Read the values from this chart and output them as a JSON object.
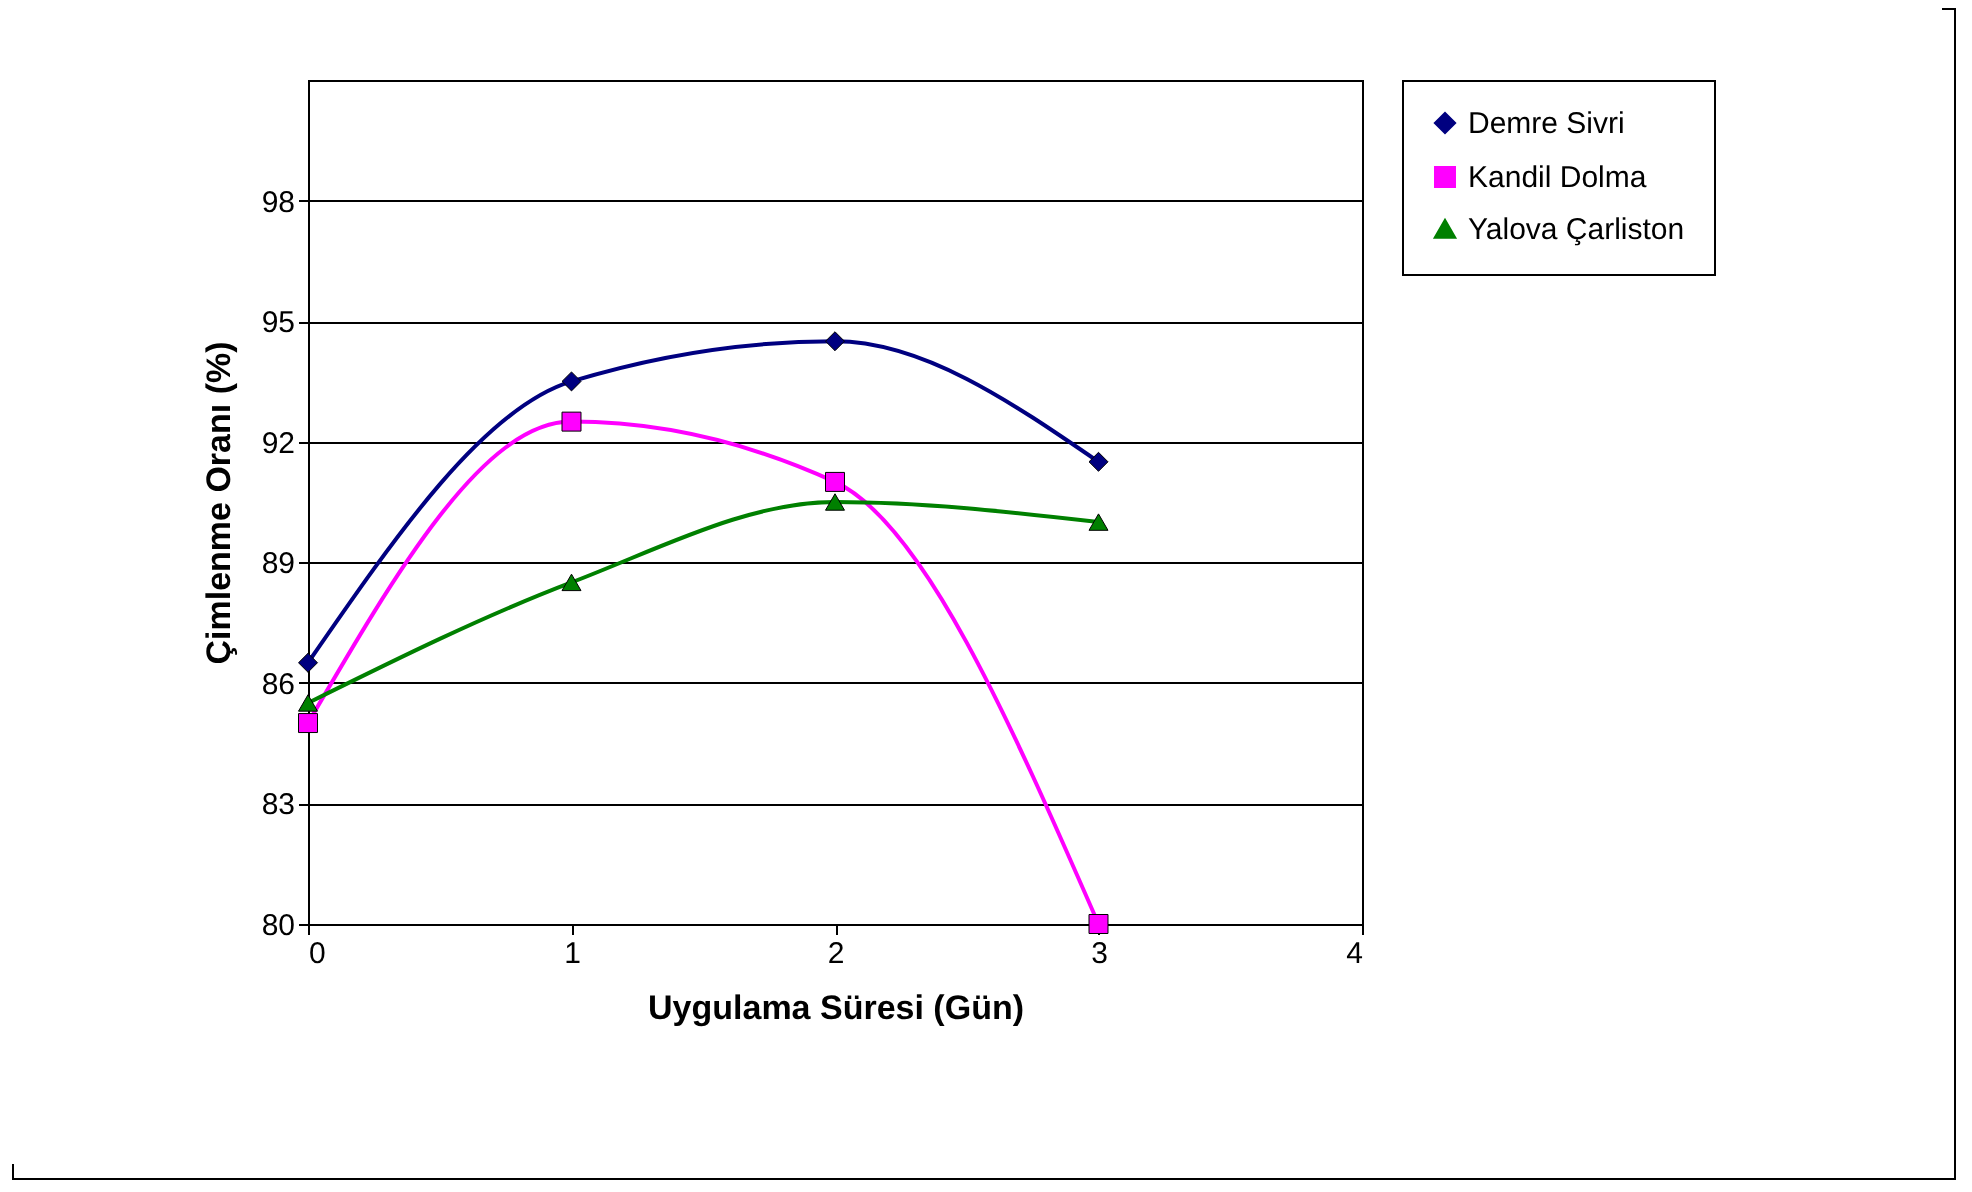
{
  "chart_data": {
    "type": "line",
    "xlabel": "Uygulama Süresi (Gün)",
    "ylabel": "Çimlenme Oranı (%)",
    "x": [
      0,
      1,
      2,
      3
    ],
    "xlim": [
      0,
      4
    ],
    "xticks": [
      0,
      1,
      2,
      3,
      4
    ],
    "ylim": [
      80,
      101
    ],
    "yticks": [
      80,
      83,
      86,
      89,
      92,
      95,
      98
    ],
    "grid": "y",
    "legend": "right",
    "series": [
      {
        "name": "Demre Sivri",
        "color": "#000080",
        "marker": "diamond",
        "values": [
          86.5,
          93.5,
          94.5,
          91.5
        ]
      },
      {
        "name": "Kandil Dolma",
        "color": "#ff00ff",
        "marker": "square",
        "values": [
          85,
          92.5,
          91,
          80
        ]
      },
      {
        "name": "Yalova Çarliston",
        "color": "#008000",
        "marker": "triangle",
        "values": [
          85.5,
          88.5,
          90.5,
          90
        ]
      }
    ]
  }
}
